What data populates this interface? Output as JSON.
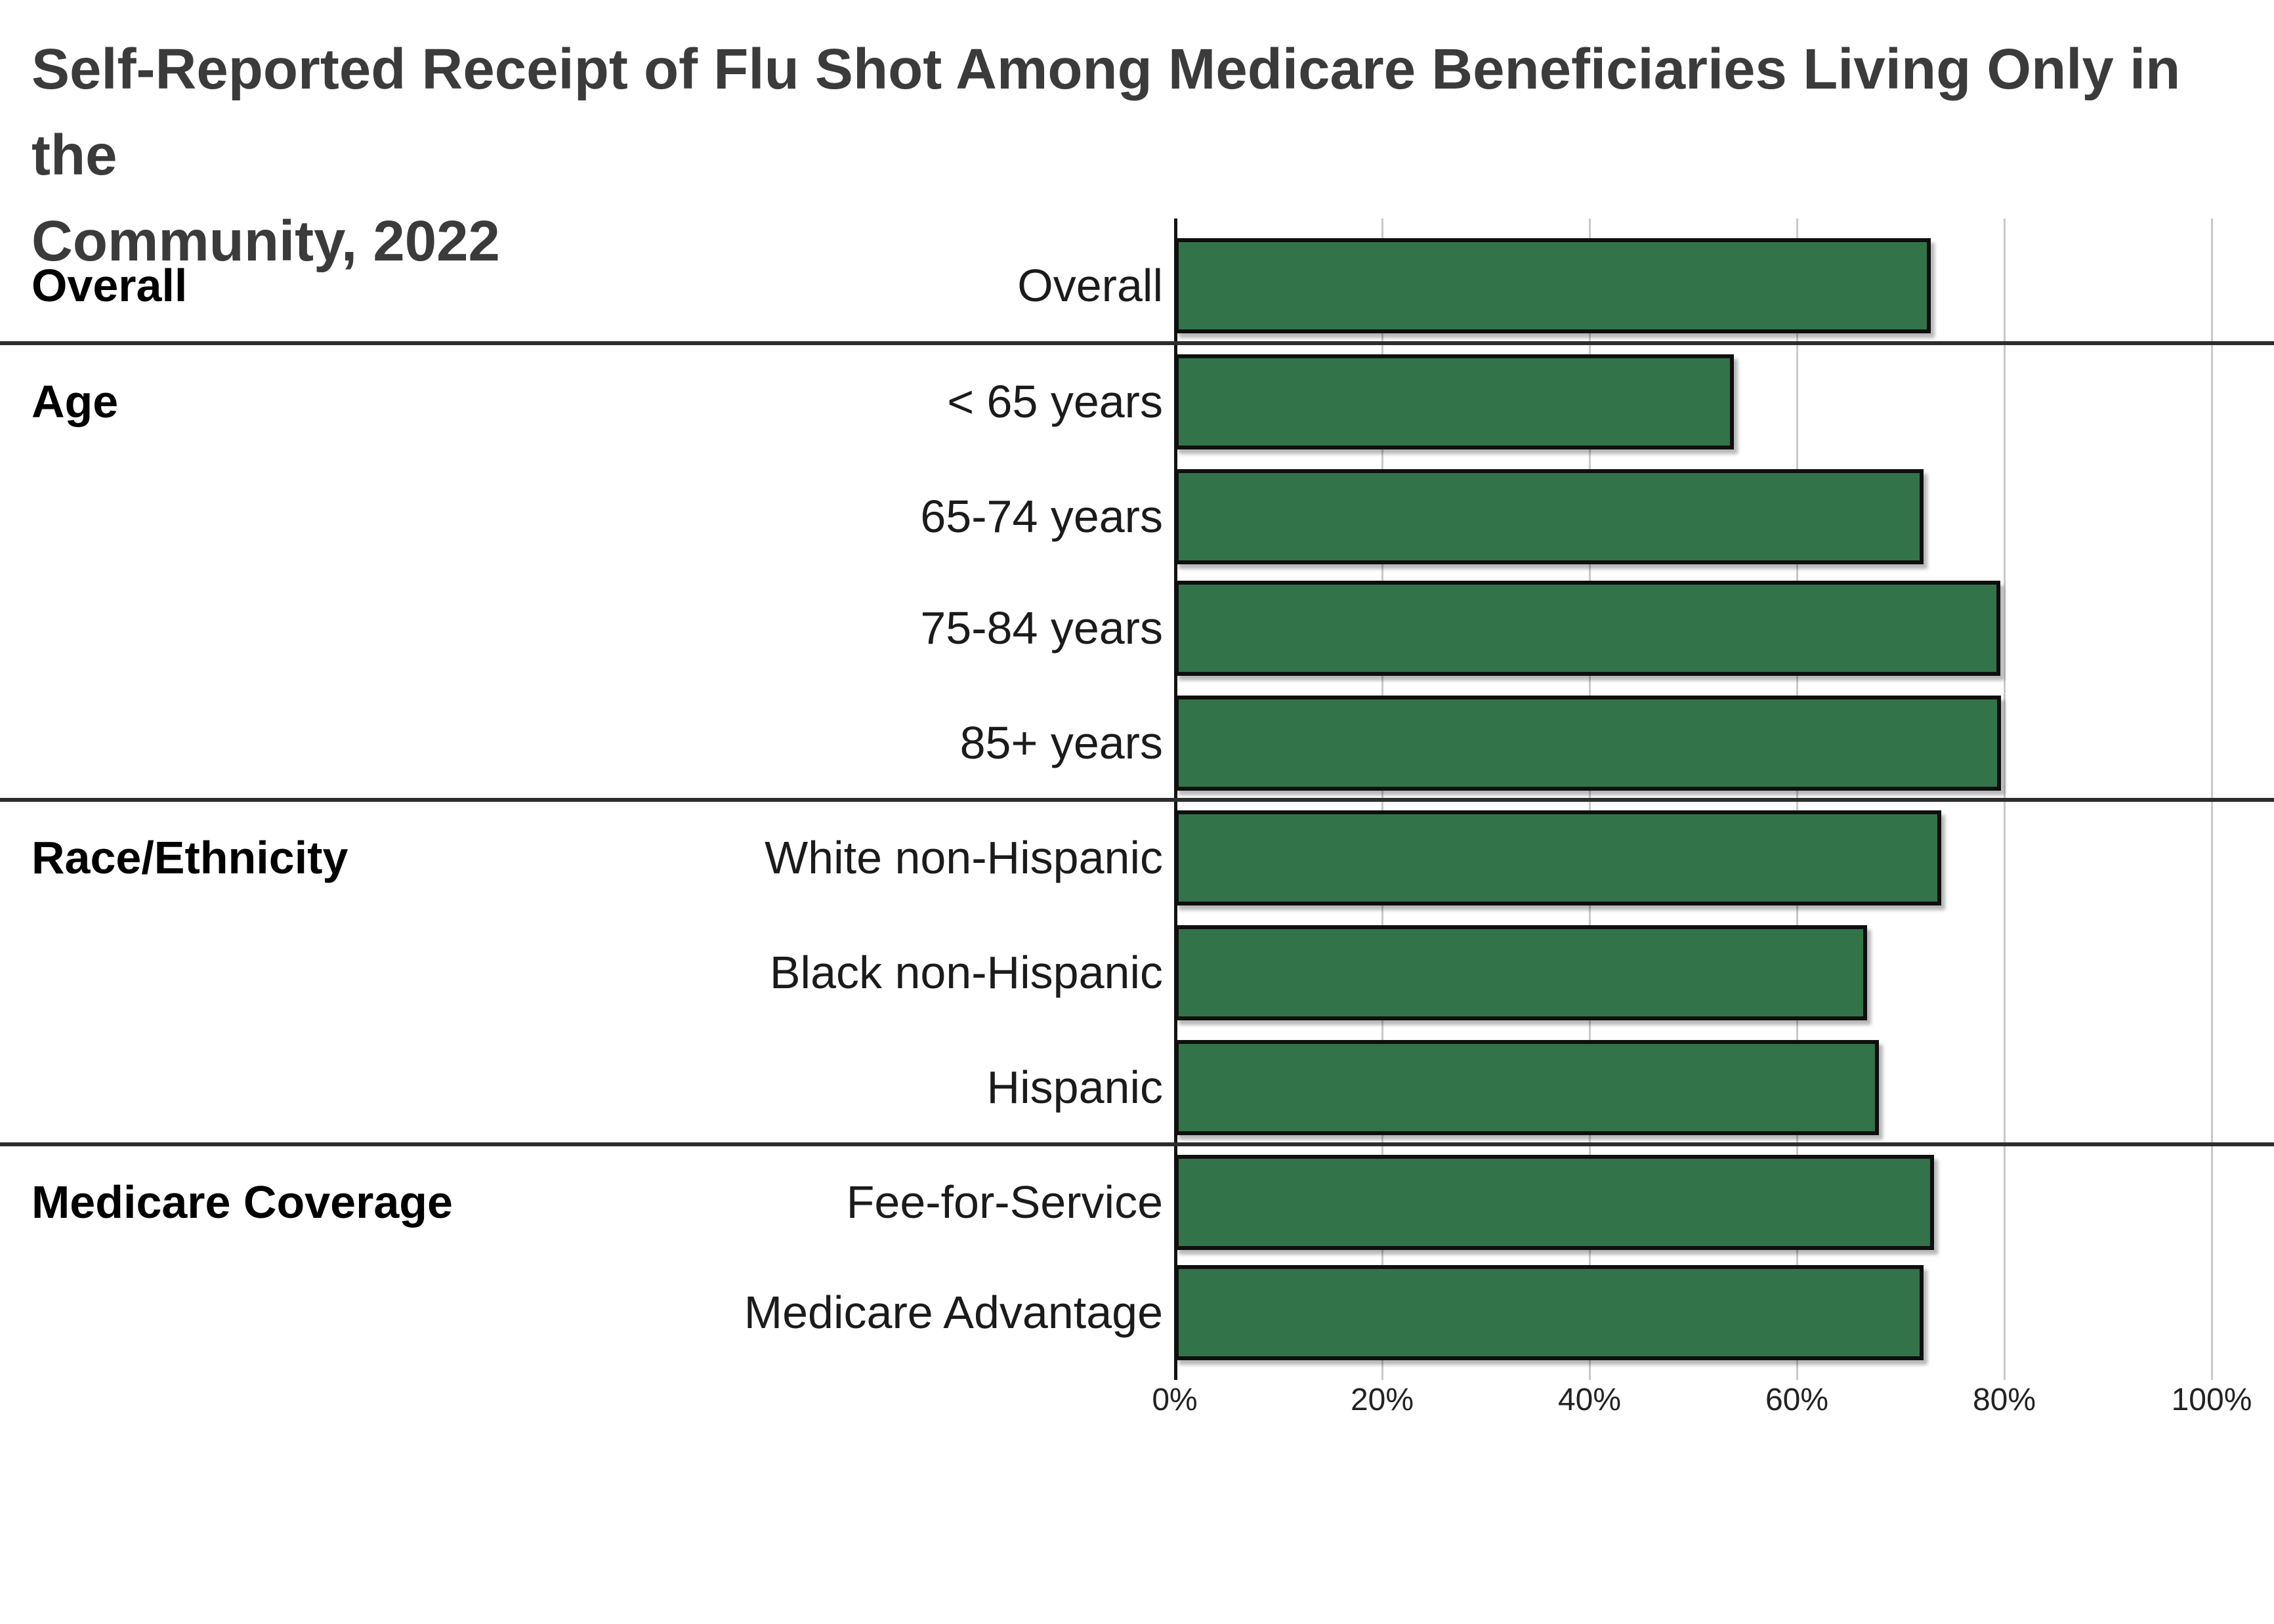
{
  "title_lines": [
    "Self-Reported Receipt of Flu Shot Among Medicare Beneficiaries Living Only in the",
    "Community, 2022"
  ],
  "chart_data": {
    "type": "bar",
    "orientation": "horizontal",
    "title": "Self-Reported Receipt of Flu Shot Among Medicare Beneficiaries Living Only in the Community, 2022",
    "unit": "percent",
    "xlim": [
      0,
      100
    ],
    "x_ticks": [
      "0%",
      "20%",
      "40%",
      "60%",
      "80%",
      "100%"
    ],
    "grid": true,
    "legend": false,
    "bar_color": "#327349",
    "bar_border_color": "#111111",
    "gridline_color": "#c9c9c9",
    "groups": [
      {
        "label": "Overall",
        "rows": [
          {
            "label": "Overall",
            "value": 72.9
          }
        ]
      },
      {
        "label": "Age",
        "rows": [
          {
            "label": "< 65 years",
            "value": 53.9
          },
          {
            "label": "65-74 years",
            "value": 72.2
          },
          {
            "label": "75-84 years",
            "value": 79.6
          },
          {
            "label": "85+ years",
            "value": 79.7
          }
        ]
      },
      {
        "label": "Race/Ethnicity",
        "rows": [
          {
            "label": "White non-Hispanic",
            "value": 73.9
          },
          {
            "label": "Black non-Hispanic",
            "value": 66.8
          },
          {
            "label": "Hispanic",
            "value": 67.9
          }
        ]
      },
      {
        "label": "Medicare Coverage",
        "rows": [
          {
            "label": "Fee-for-Service",
            "value": 73.2
          },
          {
            "label": "Medicare Advantage",
            "value": 72.2
          }
        ]
      }
    ]
  }
}
